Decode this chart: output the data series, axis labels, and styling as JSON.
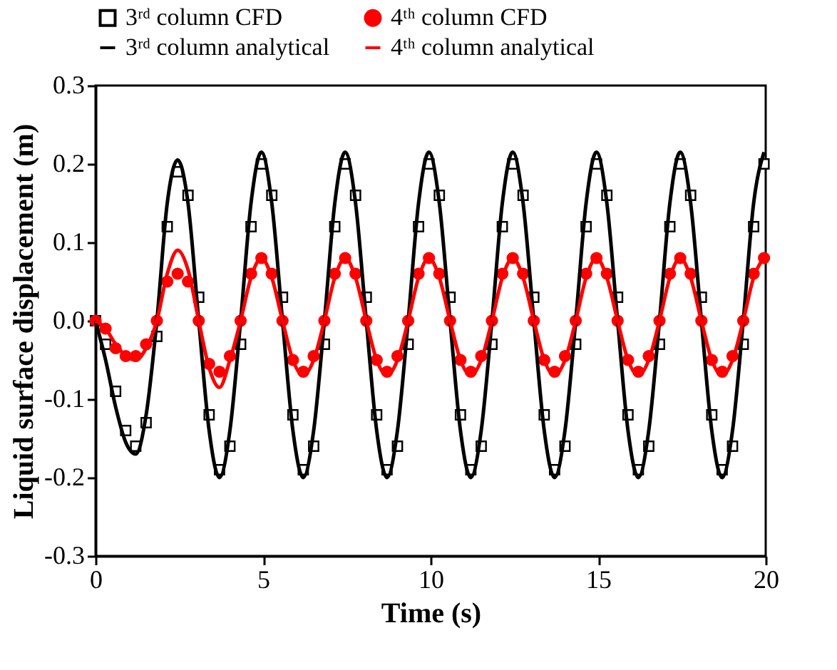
{
  "chart_data": {
    "type": "line",
    "xlabel": "Time (s)",
    "ylabel": "Liquid surface displacement (m)",
    "xlim": [
      0,
      20
    ],
    "xticks": [
      0,
      5,
      10,
      15,
      20
    ],
    "ylim": [
      -0.3,
      0.3
    ],
    "yticks": [
      {
        "value": -0.3,
        "label": "-0.3"
      },
      {
        "value": -0.2,
        "label": "-0.2"
      },
      {
        "value": -0.1,
        "label": "-0.1"
      },
      {
        "value": 0,
        "label": "0.0"
      },
      {
        "value": 0.1,
        "label": "0.1"
      },
      {
        "value": 0.2,
        "label": "0.2"
      },
      {
        "value": 0.3,
        "label": "0.3"
      }
    ],
    "grid": false,
    "legend": "top",
    "x": [
      0,
      0.3,
      0.6,
      0.9,
      1.2,
      1.51,
      1.83,
      2.14,
      2.45,
      2.76,
      3.08,
      3.39,
      3.7,
      4.01,
      4.33,
      4.64,
      4.95,
      5.26,
      5.58,
      5.89,
      6.2,
      6.51,
      6.83,
      7.14,
      7.45,
      7.76,
      8.08,
      8.39,
      8.7,
      9.01,
      9.33,
      9.64,
      9.95,
      10.26,
      10.58,
      10.89,
      11.2,
      11.51,
      11.83,
      12.14,
      12.45,
      12.76,
      13.08,
      13.39,
      13.7,
      14.01,
      14.33,
      14.64,
      14.95,
      15.26,
      15.58,
      15.89,
      16.2,
      16.51,
      16.83,
      17.14,
      17.45,
      17.76,
      18.08,
      18.39,
      18.7,
      19.01,
      19.33,
      19.64,
      19.95
    ],
    "series": [
      {
        "name": "3ʳᵈ column CFD",
        "type": "scatter",
        "marker": "square",
        "color": "#000000",
        "values": [
          0,
          -0.03,
          -0.09,
          -0.14,
          -0.16,
          -0.13,
          -0.02,
          0.12,
          0.19,
          0.16,
          0.03,
          -0.12,
          -0.19,
          -0.16,
          -0.03,
          0.12,
          0.2,
          0.16,
          0.03,
          -0.12,
          -0.19,
          -0.16,
          -0.03,
          0.12,
          0.2,
          0.16,
          0.03,
          -0.12,
          -0.19,
          -0.16,
          -0.03,
          0.12,
          0.2,
          0.16,
          0.03,
          -0.12,
          -0.19,
          -0.16,
          -0.03,
          0.12,
          0.2,
          0.16,
          0.03,
          -0.12,
          -0.19,
          -0.16,
          -0.03,
          0.12,
          0.2,
          0.16,
          0.03,
          -0.12,
          -0.19,
          -0.16,
          -0.03,
          0.12,
          0.2,
          0.16,
          0.03,
          -0.12,
          -0.19,
          -0.16,
          -0.03,
          0.12,
          0.2
        ]
      },
      {
        "name": "4ᵗʰ column CFD",
        "type": "scatter",
        "marker": "circle",
        "color": "#ff0000",
        "values": [
          0,
          -0.01,
          -0.035,
          -0.045,
          -0.045,
          -0.03,
          0.0,
          0.05,
          0.06,
          0.05,
          0.0,
          -0.055,
          -0.065,
          -0.045,
          0.0,
          0.06,
          0.08,
          0.06,
          0.0,
          -0.05,
          -0.065,
          -0.045,
          0.0,
          0.06,
          0.08,
          0.06,
          0.0,
          -0.05,
          -0.065,
          -0.045,
          0.0,
          0.06,
          0.08,
          0.06,
          0.0,
          -0.05,
          -0.065,
          -0.045,
          0.0,
          0.06,
          0.08,
          0.06,
          0.0,
          -0.05,
          -0.065,
          -0.045,
          0.0,
          0.06,
          0.08,
          0.06,
          0.0,
          -0.05,
          -0.065,
          -0.045,
          0.0,
          0.06,
          0.08,
          0.06,
          0.0,
          -0.05,
          -0.065,
          -0.045,
          0.0,
          0.06,
          0.08
        ]
      },
      {
        "name": "3ʳᵈ column analytical",
        "type": "line",
        "color": "#000000",
        "values": [
          0,
          -0.05,
          -0.11,
          -0.155,
          -0.17,
          -0.12,
          0.0,
          0.15,
          0.205,
          0.15,
          0.0,
          -0.14,
          -0.2,
          -0.14,
          0.0,
          0.15,
          0.215,
          0.15,
          0.0,
          -0.14,
          -0.2,
          -0.14,
          0.0,
          0.15,
          0.215,
          0.15,
          0.0,
          -0.14,
          -0.2,
          -0.14,
          0.0,
          0.15,
          0.215,
          0.15,
          0.0,
          -0.14,
          -0.2,
          -0.14,
          0.0,
          0.15,
          0.215,
          0.15,
          0.0,
          -0.14,
          -0.2,
          -0.14,
          0.0,
          0.15,
          0.215,
          0.15,
          0.0,
          -0.14,
          -0.2,
          -0.14,
          0.0,
          0.15,
          0.215,
          0.15,
          0.0,
          -0.14,
          -0.2,
          -0.14,
          0.0,
          0.15,
          0.215
        ]
      },
      {
        "name": "4ᵗʰ column analytical",
        "type": "line",
        "color": "#ff0000",
        "values": [
          0,
          -0.01,
          -0.03,
          -0.045,
          -0.05,
          -0.035,
          0.0,
          0.06,
          0.09,
          0.065,
          0.0,
          -0.06,
          -0.085,
          -0.05,
          0.0,
          0.055,
          0.08,
          0.055,
          0.0,
          -0.05,
          -0.07,
          -0.05,
          0.0,
          0.055,
          0.08,
          0.055,
          0.0,
          -0.05,
          -0.07,
          -0.05,
          0.0,
          0.055,
          0.08,
          0.055,
          0.0,
          -0.05,
          -0.07,
          -0.05,
          0.0,
          0.055,
          0.08,
          0.055,
          0.0,
          -0.05,
          -0.07,
          -0.05,
          0.0,
          0.055,
          0.08,
          0.055,
          0.0,
          -0.05,
          -0.07,
          -0.05,
          0.0,
          0.055,
          0.08,
          0.055,
          0.0,
          -0.05,
          -0.07,
          -0.05,
          0.0,
          0.055,
          0.08
        ]
      }
    ]
  }
}
